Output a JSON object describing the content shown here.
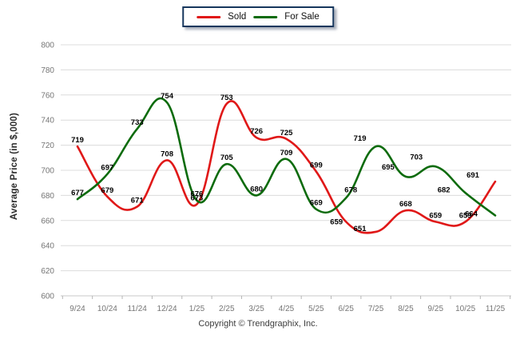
{
  "chart_data": {
    "type": "line",
    "categories": [
      "9/24",
      "10/24",
      "11/24",
      "12/24",
      "1/25",
      "2/25",
      "3/25",
      "4/25",
      "5/25",
      "6/25",
      "7/25",
      "8/25",
      "9/25",
      "10/25",
      "11/25"
    ],
    "series": [
      {
        "name": "Sold",
        "color": "#e01818",
        "values": [
          719,
          679,
          671,
          708,
          673,
          753,
          726,
          725,
          699,
          659,
          651,
          668,
          659,
          659,
          691
        ]
      },
      {
        "name": "For Sale",
        "color": "#0c6b0c",
        "values": [
          677,
          697,
          733,
          754,
          676,
          705,
          680,
          709,
          669,
          678,
          719,
          695,
          703,
          682,
          664
        ]
      }
    ],
    "title": "",
    "xlabel": "",
    "ylabel": "Average Price (in $,000)",
    "ylim": [
      600,
      800
    ],
    "yticks": [
      800,
      780,
      760,
      740,
      720,
      700,
      680,
      660,
      640,
      620,
      600
    ],
    "grid": "horizontal",
    "legend_position": "top-center",
    "data_labels": true
  },
  "footer": {
    "copyright": "Copyright © Trendgraphix, Inc."
  },
  "colors": {
    "grid": "#dcdcdc",
    "baseline": "#c9c9c9",
    "tick": "#b5b5b5",
    "axis_text": "#757575",
    "data_label": "#000000",
    "legend_border": "#17375d",
    "background": "#ffffff"
  }
}
